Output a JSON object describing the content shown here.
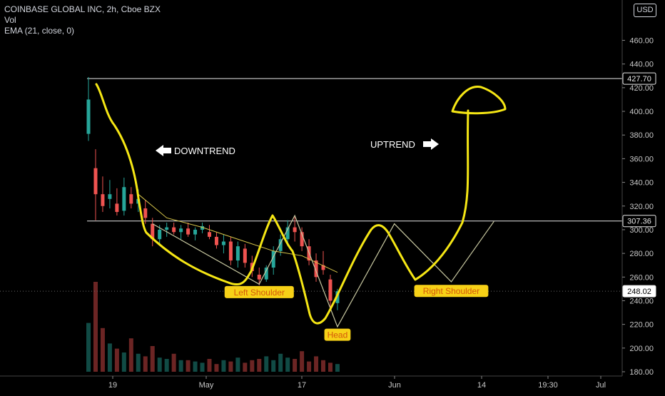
{
  "header": {
    "symbol": "COINBASE GLOBAL INC, 2h, Cboe BZX",
    "vol_label": "Vol",
    "ema_label": "EMA (21, close, 0)",
    "currency": "USD"
  },
  "colors": {
    "background": "#000000",
    "up_candle": "#26a69a",
    "down_candle": "#ef5350",
    "drawing": "#f5e614",
    "pattern_line": "#c7c7a0",
    "label_bg": "#f7d117",
    "label_text": "#d4570a",
    "axis_text": "#c8c8c8"
  },
  "chart_data": {
    "type": "candlestick",
    "y_axis_ticks": [
      "460.00",
      "440.00",
      "420.00",
      "400.00",
      "380.00",
      "360.00",
      "340.00",
      "320.00",
      "300.00",
      "280.00",
      "260.00",
      "240.00",
      "220.00",
      "200.00",
      "180.00"
    ],
    "ylim": [
      178,
      472
    ],
    "x_axis_ticks": [
      "19",
      "May",
      "17",
      "Jun",
      "14",
      "19:30",
      "Jul"
    ],
    "price_levels": [
      {
        "value": 427.7,
        "label": "427.70",
        "style": "solid-white"
      },
      {
        "value": 307.36,
        "label": "307.36",
        "style": "solid-white"
      },
      {
        "value": 248.02,
        "label": "248.02",
        "style": "dotted-gray"
      }
    ],
    "annotations": [
      {
        "text": "DOWNTREND",
        "arrow": "left"
      },
      {
        "text": "UPTREND",
        "arrow": "right"
      },
      {
        "text": "Left Shoulder",
        "x_date": "2021-05-08",
        "y": 247
      },
      {
        "text": "Head",
        "x_date": "2021-05-19",
        "y": 211
      },
      {
        "text": "Right Shoulder",
        "x_date": "2021-06-04",
        "y": 248
      }
    ],
    "pattern_path": [
      {
        "x_date": "2021-04-23",
        "y": 305
      },
      {
        "x_date": "2021-05-08",
        "y": 254
      },
      {
        "x_date": "2021-05-13",
        "y": 312
      },
      {
        "x_date": "2021-05-19",
        "y": 218
      },
      {
        "x_date": "2021-05-27",
        "y": 305
      },
      {
        "x_date": "2021-06-04",
        "y": 256
      },
      {
        "x_date": "2021-06-10",
        "y": 307
      }
    ],
    "candles": [
      {
        "t": "2021-04-14",
        "o": 381,
        "h": 429,
        "l": 375,
        "c": 410
      },
      {
        "t": "2021-04-15",
        "o": 352,
        "h": 368,
        "l": 308,
        "c": 330
      },
      {
        "t": "2021-04-16",
        "o": 330,
        "h": 345,
        "l": 315,
        "c": 320
      },
      {
        "t": "2021-04-17",
        "o": 326,
        "h": 342,
        "l": 318,
        "c": 330
      },
      {
        "t": "2021-04-18",
        "o": 322,
        "h": 335,
        "l": 312,
        "c": 315
      },
      {
        "t": "2021-04-19",
        "o": 316,
        "h": 344,
        "l": 312,
        "c": 336
      },
      {
        "t": "2021-04-20",
        "o": 330,
        "h": 336,
        "l": 318,
        "c": 322
      },
      {
        "t": "2021-04-21",
        "o": 322,
        "h": 334,
        "l": 315,
        "c": 326
      },
      {
        "t": "2021-04-22",
        "o": 318,
        "h": 325,
        "l": 305,
        "c": 310
      },
      {
        "t": "2021-04-23",
        "o": 305,
        "h": 310,
        "l": 286,
        "c": 292
      },
      {
        "t": "2021-04-24",
        "o": 292,
        "h": 304,
        "l": 288,
        "c": 300
      },
      {
        "t": "2021-04-25",
        "o": 300,
        "h": 306,
        "l": 294,
        "c": 302
      },
      {
        "t": "2021-04-26",
        "o": 302,
        "h": 306,
        "l": 296,
        "c": 298
      },
      {
        "t": "2021-04-27",
        "o": 298,
        "h": 304,
        "l": 292,
        "c": 301
      },
      {
        "t": "2021-04-28",
        "o": 301,
        "h": 306,
        "l": 294,
        "c": 296
      },
      {
        "t": "2021-04-29",
        "o": 296,
        "h": 302,
        "l": 291,
        "c": 300
      },
      {
        "t": "2021-04-30",
        "o": 300,
        "h": 306,
        "l": 297,
        "c": 303
      },
      {
        "t": "2021-05-01",
        "o": 298,
        "h": 304,
        "l": 292,
        "c": 294
      },
      {
        "t": "2021-05-02",
        "o": 294,
        "h": 298,
        "l": 284,
        "c": 287
      },
      {
        "t": "2021-05-03",
        "o": 287,
        "h": 296,
        "l": 280,
        "c": 290
      },
      {
        "t": "2021-05-04",
        "o": 290,
        "h": 294,
        "l": 270,
        "c": 274
      },
      {
        "t": "2021-05-05",
        "o": 274,
        "h": 290,
        "l": 268,
        "c": 286
      },
      {
        "t": "2021-05-06",
        "o": 284,
        "h": 288,
        "l": 268,
        "c": 272
      },
      {
        "t": "2021-05-07",
        "o": 272,
        "h": 278,
        "l": 260,
        "c": 265
      },
      {
        "t": "2021-05-08",
        "o": 262,
        "h": 268,
        "l": 253,
        "c": 258
      },
      {
        "t": "2021-05-09",
        "o": 258,
        "h": 270,
        "l": 256,
        "c": 268
      },
      {
        "t": "2021-05-10",
        "o": 268,
        "h": 286,
        "l": 262,
        "c": 282
      },
      {
        "t": "2021-05-11",
        "o": 282,
        "h": 296,
        "l": 278,
        "c": 292
      },
      {
        "t": "2021-05-12",
        "o": 292,
        "h": 308,
        "l": 286,
        "c": 302
      },
      {
        "t": "2021-05-13",
        "o": 302,
        "h": 312,
        "l": 290,
        "c": 298
      },
      {
        "t": "2021-05-14",
        "o": 298,
        "h": 302,
        "l": 282,
        "c": 286
      },
      {
        "t": "2021-05-15",
        "o": 286,
        "h": 292,
        "l": 270,
        "c": 274
      },
      {
        "t": "2021-05-16",
        "o": 274,
        "h": 280,
        "l": 256,
        "c": 260
      },
      {
        "t": "2021-05-17",
        "o": 270,
        "h": 282,
        "l": 262,
        "c": 266
      },
      {
        "t": "2021-05-18",
        "o": 258,
        "h": 262,
        "l": 234,
        "c": 240
      },
      {
        "t": "2021-05-19",
        "o": 238,
        "h": 250,
        "l": 232,
        "c": 248
      }
    ],
    "ema": [
      {
        "t": "2021-04-21",
        "v": 330
      },
      {
        "t": "2021-04-25",
        "v": 310
      },
      {
        "t": "2021-04-30",
        "v": 302
      },
      {
        "t": "2021-05-05",
        "v": 292
      },
      {
        "t": "2021-05-10",
        "v": 282
      },
      {
        "t": "2021-05-14",
        "v": 278
      },
      {
        "t": "2021-05-19",
        "v": 264
      }
    ],
    "volume": [
      38,
      70,
      34,
      22,
      18,
      15,
      26,
      14,
      12,
      20,
      11,
      10,
      14,
      9,
      9,
      8,
      7,
      10,
      6,
      9,
      8,
      11,
      7,
      9,
      10,
      12,
      9,
      14,
      11,
      10,
      16,
      8,
      12,
      9,
      7,
      6
    ]
  }
}
